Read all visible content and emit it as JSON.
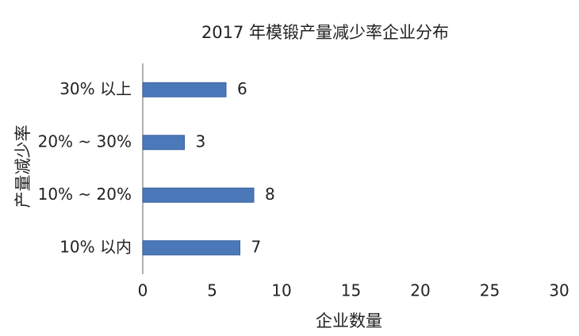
{
  "chart_data": {
    "type": "barh",
    "title": "2017 年模锻产量减少率企业分布",
    "xlabel": "企业数量",
    "ylabel": "产量减少率",
    "categories": [
      "30% 以上",
      "20% ~ 30%",
      "10% ~ 20%",
      "10% 以内"
    ],
    "values": [
      6,
      3,
      8,
      7
    ],
    "color": "#4a78b8",
    "xlim": [
      0,
      30
    ],
    "xticks": [
      0,
      5,
      10,
      15,
      20,
      25,
      30
    ],
    "grid": false
  }
}
